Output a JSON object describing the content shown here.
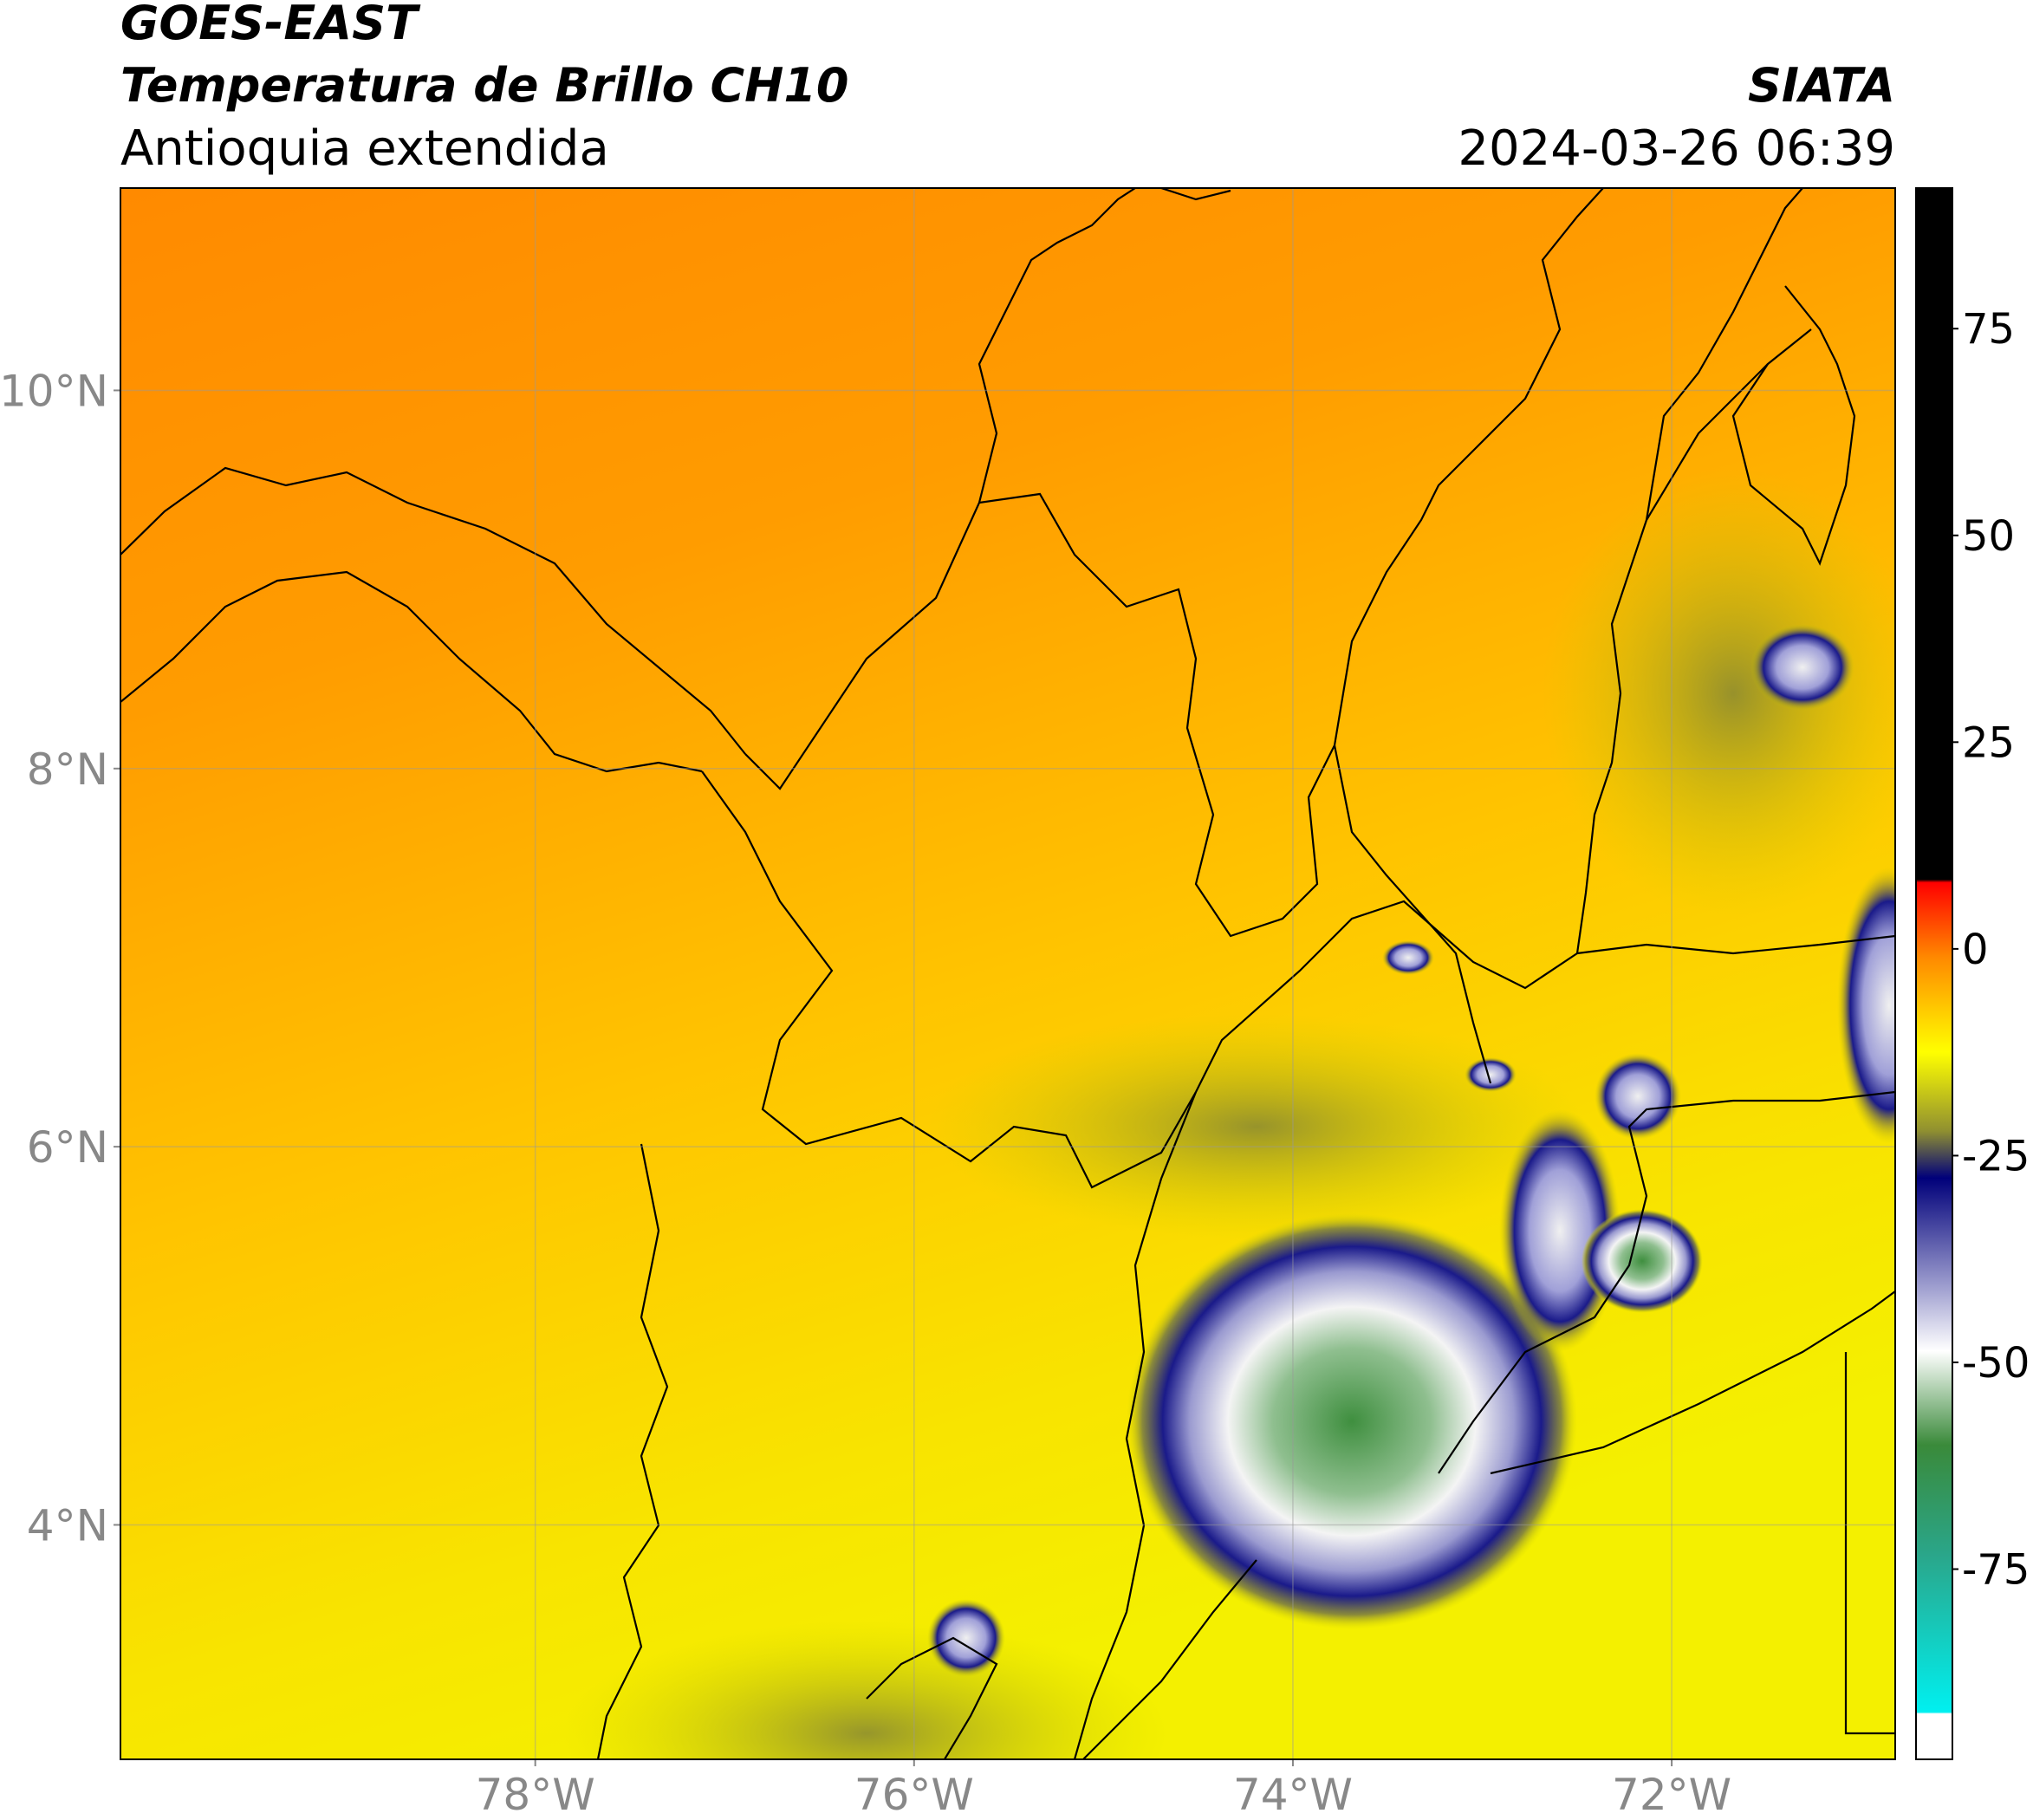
{
  "header": {
    "satellite": "GOES-EAST",
    "title": "Temperatura de Brillo CH10",
    "region": "Antioquia extendida",
    "agency": "SIATA",
    "datetime": "2024-03-26 06:39"
  },
  "map": {
    "xlim": [
      -80.19,
      -70.82
    ],
    "ylim": [
      2.76,
      11.07
    ],
    "xticks": [
      {
        "value": -78,
        "label": "78°W"
      },
      {
        "value": -76,
        "label": "76°W"
      },
      {
        "value": -74,
        "label": "74°W"
      },
      {
        "value": -72,
        "label": "72°W"
      }
    ],
    "yticks": [
      {
        "value": 4,
        "label": "4°N"
      },
      {
        "value": 6,
        "label": "6°N"
      },
      {
        "value": 8,
        "label": "8°N"
      },
      {
        "value": 10,
        "label": "10°N"
      }
    ],
    "grid": true
  },
  "colorbar": {
    "lim": [
      -98,
      92
    ],
    "ticks": [
      -75,
      -50,
      -25,
      0,
      25,
      50,
      75
    ]
  }
}
